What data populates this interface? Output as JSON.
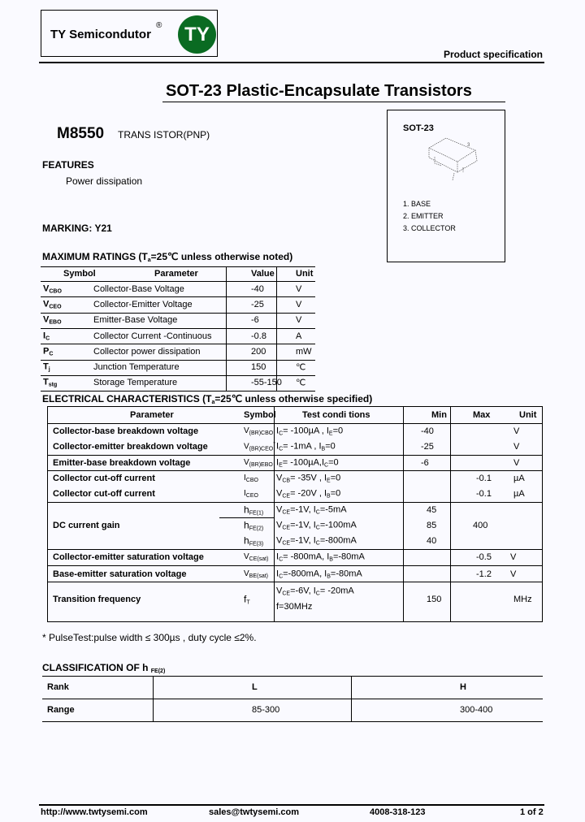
{
  "header": {
    "brand": "TY Semicondutor",
    "registered": "®",
    "logo_text": "TY",
    "logo_color": "#0a6b22",
    "spec_label": "Product specification"
  },
  "title": "SOT-23 Plastic-Encapsulate Transistors",
  "part": {
    "number": "M8550",
    "type": "TRANS ISTOR(PNP)"
  },
  "features": {
    "heading": "FEATURES",
    "items": [
      "Power dissipation"
    ]
  },
  "marking": "MARKING: Y21",
  "package": {
    "name": "SOT-23",
    "pins": [
      "1. BASE",
      "2. EMITTER",
      "3. COLLECTOR"
    ]
  },
  "max_ratings": {
    "title_pre": "MAXIMUM RATINGS (T",
    "title_sub": "a",
    "title_post": "=25℃ unless otherwise noted)",
    "headers": [
      "Symbol",
      "Parameter",
      "Value",
      "Unit"
    ],
    "rows": [
      {
        "sym": "V",
        "sub": "CBO",
        "param": "Collector-Base Voltage",
        "value": "-40",
        "unit": "V"
      },
      {
        "sym": "V",
        "sub": "CEO",
        "param": "Collector-Emitter Voltage",
        "value": "-25",
        "unit": "V"
      },
      {
        "sym": "V",
        "sub": "EBO",
        "param": "Emitter-Base Voltage",
        "value": "-6",
        "unit": "V"
      },
      {
        "sym": "I",
        "sub": "C",
        "param": "Collector Current -Continuous",
        "value": "-0.8",
        "unit": "A"
      },
      {
        "sym": "P",
        "sub": "C",
        "param": "Collector power dissipation",
        "value": "200",
        "unit": "mW"
      },
      {
        "sym": "T",
        "sub": "j",
        "param": "Junction Temperature",
        "value": "150",
        "unit": "℃"
      },
      {
        "sym": "T",
        "sub": "stg",
        "param": "Storage Temperature",
        "value": "-55-150",
        "unit": "℃"
      }
    ]
  },
  "electrical": {
    "title_pre": "ELECTRICAL CHARACTERISTICS (T",
    "title_sub": "a",
    "title_post": "=25℃ unless otherwise specified)",
    "headers": [
      "Parameter",
      "Symbol",
      "Test condi tions",
      "Min",
      "Max",
      "Unit"
    ],
    "rows": [
      {
        "param": "Collector-base breakdown voltage",
        "sym": "V",
        "sub": "(BR)CBO",
        "sup": "",
        "cond": [
          [
            "I",
            "C",
            "= -100µA , I",
            "E",
            "=0"
          ]
        ],
        "min": "-40",
        "max": "",
        "unit": "V"
      },
      {
        "param": "Collector-emitter breakdown voltage",
        "sym": "V",
        "sub": "(BR)CEO",
        "sup": "*",
        "cond": [
          [
            "I",
            "C",
            "= -1mA , I",
            "B",
            "=0"
          ]
        ],
        "min": "-25",
        "max": "",
        "unit": "V"
      },
      {
        "param": "Emitter-base breakdown voltage",
        "sym": "V",
        "sub": "(BR)EBO",
        "sup": "",
        "cond": [
          [
            "I",
            "E",
            "= -100µA,I",
            "C",
            "=0"
          ]
        ],
        "min": "-6",
        "max": "",
        "unit": "V"
      },
      {
        "param": "Collector cut-off current",
        "sym": "I",
        "sub": "CBO",
        "sup": "",
        "cond": [
          [
            "V",
            "CB",
            "= -35V , I",
            "E",
            "=0"
          ]
        ],
        "min": "",
        "max": "-0.1",
        "unit": "µA"
      },
      {
        "param": "Collector cut-off current",
        "sym": "I",
        "sub": "CEO",
        "sup": "",
        "cond": [
          [
            "V",
            "CE",
            "= -20V , I",
            "B",
            "=0"
          ]
        ],
        "min": "",
        "max": "-0.1",
        "unit": "µA"
      },
      {
        "param": "",
        "sym": "h",
        "sub": "FE(1)",
        "sup": "",
        "cond": [
          [
            "V",
            "CE",
            "=-1V, I",
            "C",
            "=-5mA"
          ]
        ],
        "min": "45",
        "max": "",
        "unit": ""
      },
      {
        "param": "DC current gain",
        "sym": "h",
        "sub": "FE(2)",
        "sup": "",
        "cond": [
          [
            "V",
            "CE",
            "=-1V, I",
            "C",
            "=-100mA"
          ]
        ],
        "min": "85",
        "max": "400",
        "unit": ""
      },
      {
        "param": "",
        "sym": "h",
        "sub": "FE(3)",
        "sup": "",
        "cond": [
          [
            "V",
            "CE",
            "=-1V, I",
            "C",
            "=-800mA"
          ]
        ],
        "min": "40",
        "max": "",
        "unit": ""
      },
      {
        "param": "Collector-emitter saturation voltage",
        "sym": "V",
        "sub": "CE(sat)",
        "sup": "",
        "cond": [
          [
            "I",
            "C",
            "= -800mA, I",
            "B",
            "=-80mA"
          ]
        ],
        "min": "",
        "max": "-0.5",
        "unit": "V"
      },
      {
        "param": "Base-emitter saturation voltage",
        "sym": "V",
        "sub": "BE(sat)",
        "sup": "",
        "cond": [
          [
            "I",
            "C",
            "=-800mA, I",
            "B",
            "=-80mA"
          ]
        ],
        "min": "",
        "max": "-1.2",
        "unit": "V"
      },
      {
        "param": "Transition frequency",
        "sym": "f",
        "sub": "T",
        "sup": "",
        "cond": [
          [
            "V",
            "CE",
            "=-6V, I",
            "C",
            "= -20mA"
          ],
          [
            "f=30MHz"
          ]
        ],
        "min": "150",
        "max": "",
        "unit": "MHz"
      }
    ]
  },
  "footnote": "*  PulseTest:pulse  width ≤  300µs , duty  cycle  ≤2%.",
  "classification": {
    "title": "CLASSIFICATION OF h",
    "title_sub": "FE(2)",
    "rows": [
      [
        "Rank",
        "L",
        "H"
      ],
      [
        "Range",
        "85-300",
        "300-400"
      ]
    ]
  },
  "footer": {
    "website": "http://www.twtysemi.com",
    "email": "sales@twtysemi.com",
    "phone": "4008-318-123",
    "page": "1 of 2"
  }
}
